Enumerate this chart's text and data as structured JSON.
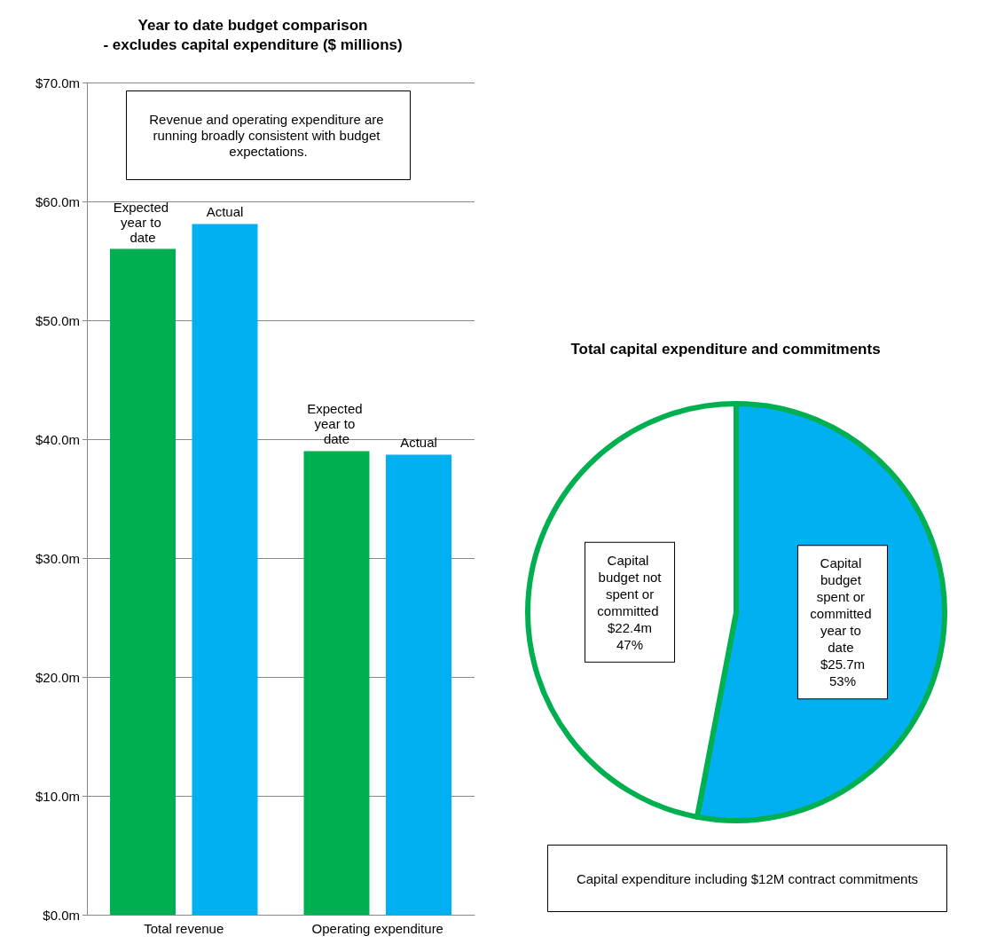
{
  "chart_data": [
    {
      "type": "bar",
      "title": "Year to date budget comparison\n- excludes capital expenditure ($ millions)",
      "categories": [
        "Total revenue",
        "Operating expenditure"
      ],
      "series": [
        {
          "name": "Expected year to date",
          "color": "#00b050",
          "values": [
            56.0,
            39.0
          ]
        },
        {
          "name": "Actual",
          "color": "#00b0f0",
          "values": [
            58.1,
            38.7
          ]
        }
      ],
      "ylim": [
        0,
        70
      ],
      "yticks": [
        {
          "value": 0,
          "label": "$0.0m"
        },
        {
          "value": 10,
          "label": "$10.0m"
        },
        {
          "value": 20,
          "label": "$20.0m"
        },
        {
          "value": 30,
          "label": "$30.0m"
        },
        {
          "value": 40,
          "label": "$40.0m"
        },
        {
          "value": 50,
          "label": "$50.0m"
        },
        {
          "value": 60,
          "label": "$60.0m"
        },
        {
          "value": 70,
          "label": "$70.0m"
        }
      ],
      "grid": "y",
      "legend": false,
      "annotations": [
        "Revenue and operating expenditure are running broadly consistent with budget expectations."
      ]
    },
    {
      "type": "pie",
      "title": "Total capital expenditure and commitments",
      "categories": [
        "Capital budget spent or committed year to date $25.7m",
        "Capital budget not spent or committed $22.4m"
      ],
      "values": [
        53,
        47
      ],
      "colors": [
        "#00b0f0",
        "#ffffff"
      ],
      "value_labels": [
        "53%",
        "47%"
      ],
      "legend": false,
      "annotations": [
        "Capital expenditure including $12M contract commitments"
      ]
    }
  ]
}
